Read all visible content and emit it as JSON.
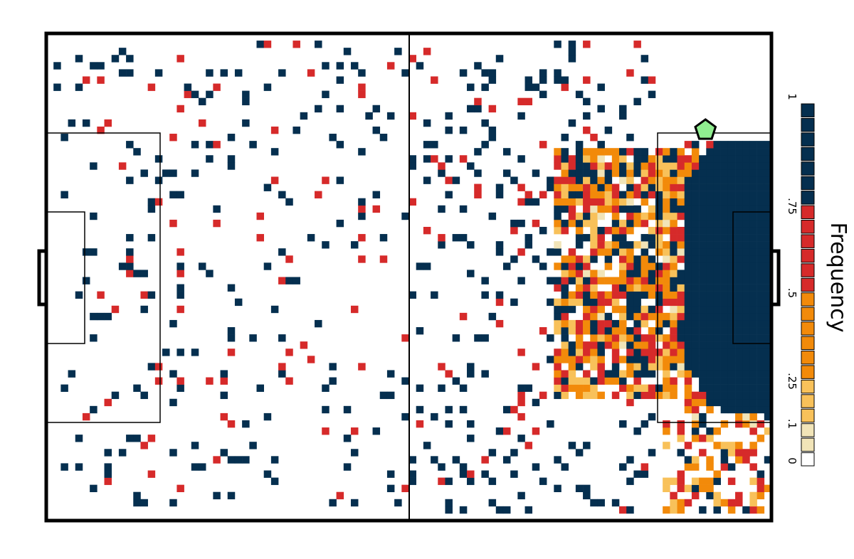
{
  "chart_data": {
    "type": "heatmap",
    "title": "",
    "xlabel": "",
    "ylabel": "",
    "legend": {
      "title": "Frequency",
      "placement": "right",
      "tick_labels": [
        "1",
        ".75",
        ".5",
        ".25",
        ".1",
        "0"
      ],
      "ticks": [
        1,
        0.75,
        0.5,
        0.25,
        0.1,
        0
      ],
      "swatch_colors": [
        "#052f4f",
        "#052f4f",
        "#052f4f",
        "#052f4f",
        "#052f4f",
        "#052f4f",
        "#052f4f",
        "#d62a2a",
        "#d62a2a",
        "#d62a2a",
        "#d62a2a",
        "#d62a2a",
        "#d62a2a",
        "#f28a0a",
        "#f28a0a",
        "#f28a0a",
        "#f28a0a",
        "#f28a0a",
        "#f28a0a",
        "#f8c15a",
        "#f8c15a",
        "#f8c15a",
        "#f1e4b8",
        "#f1e4b8",
        "#ffffff"
      ]
    },
    "bins": {
      "x": 100,
      "y": 68
    },
    "color_scale": [
      {
        "max": 0.1,
        "color": "#f1e4b8",
        "name": "very-low"
      },
      {
        "max": 0.25,
        "color": "#f8c15a",
        "name": "low"
      },
      {
        "max": 0.5,
        "color": "#f28a0a",
        "name": "medium"
      },
      {
        "max": 0.75,
        "color": "#d62a2a",
        "name": "high"
      },
      {
        "max": 1.0,
        "color": "#052f4f",
        "name": "very-high"
      }
    ],
    "pitch": {
      "length": 100,
      "width": 68,
      "orientation": "horizontal",
      "attack": "right"
    },
    "marker": {
      "shape": "pentagon",
      "color": "#90ee90",
      "x": 90.9,
      "y": 54.5
    },
    "series": [
      {
        "region": "dense-block",
        "x": [
          87.5,
          100
        ],
        "y": [
          15,
          53
        ],
        "value": 1.0
      },
      {
        "region": "high-frequency-belt",
        "x": [
          70,
          87.5
        ],
        "y": [
          17,
          52
        ],
        "value": 0.6
      },
      {
        "region": "low-wing",
        "x": [
          85,
          100
        ],
        "y": [
          1,
          15
        ],
        "value": 0.55
      },
      {
        "region": "sparse-attacking-half",
        "x": [
          50,
          85
        ],
        "y": [
          1,
          67
        ],
        "value": 0.03
      },
      {
        "region": "sparse-defensive-half",
        "x": [
          1,
          50
        ],
        "y": [
          1,
          67
        ],
        "value": 0.02
      }
    ]
  }
}
